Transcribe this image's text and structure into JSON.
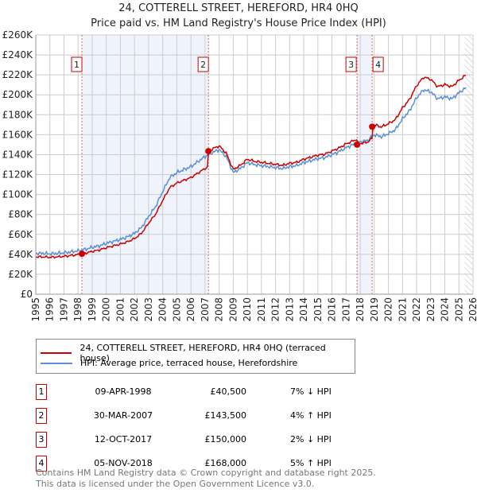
{
  "title": "24, COTTERELL STREET, HEREFORD, HR4 0HQ",
  "subtitle": "Price paid vs. HM Land Registry's House Price Index (HPI)",
  "chart_data": {
    "type": "line",
    "ylim": [
      0,
      260000
    ],
    "xlim": [
      1995,
      2026
    ],
    "yticks": [
      0,
      20000,
      40000,
      60000,
      80000,
      100000,
      120000,
      140000,
      160000,
      180000,
      200000,
      220000,
      240000,
      260000
    ],
    "ytick_labels": [
      "£0",
      "£20K",
      "£40K",
      "£60K",
      "£80K",
      "£100K",
      "£120K",
      "£140K",
      "£160K",
      "£180K",
      "£200K",
      "£220K",
      "£240K",
      "£260K"
    ],
    "xtick_labels": [
      "1995",
      "1996",
      "1997",
      "1998",
      "1999",
      "2000",
      "2001",
      "2002",
      "2003",
      "2004",
      "2005",
      "2006",
      "2007",
      "2008",
      "2009",
      "2010",
      "2011",
      "2012",
      "2013",
      "2014",
      "2015",
      "2016",
      "2017",
      "2018",
      "2019",
      "2020",
      "2021",
      "2022",
      "2023",
      "2024",
      "2025",
      "2026"
    ],
    "hpi_series": {
      "name": "HPI: Average price, terraced house, Herefordshire",
      "color": "#5b8fd6",
      "x": [
        1995,
        1995.5,
        1996,
        1996.5,
        1997,
        1997.5,
        1998,
        1998.5,
        1999,
        1999.5,
        2000,
        2000.5,
        2001,
        2001.5,
        2002,
        2002.5,
        2003,
        2003.5,
        2004,
        2004.5,
        2005,
        2005.5,
        2006,
        2006.5,
        2007,
        2007.5,
        2008,
        2008.5,
        2009,
        2009.5,
        2010,
        2010.5,
        2011,
        2011.5,
        2012,
        2012.5,
        2013,
        2013.5,
        2014,
        2014.5,
        2015,
        2015.5,
        2016,
        2016.5,
        2017,
        2017.5,
        2018,
        2018.5,
        2019,
        2019.5,
        2020,
        2020.5,
        2021,
        2021.5,
        2022,
        2022.5,
        2023,
        2023.5,
        2024,
        2024.5,
        2025,
        2025.5
      ],
      "y": [
        41000,
        41000,
        40500,
        41000,
        41500,
        42500,
        43500,
        45000,
        47000,
        48500,
        51000,
        53000,
        55000,
        57500,
        61000,
        67000,
        78000,
        88000,
        103000,
        117000,
        122000,
        125000,
        128000,
        133000,
        138000,
        142000,
        145000,
        138000,
        122000,
        126000,
        132000,
        130000,
        129000,
        128000,
        127000,
        126000,
        128000,
        129000,
        132000,
        134000,
        136000,
        137000,
        140000,
        143000,
        147000,
        150000,
        153000,
        154000,
        160000,
        158000,
        161000,
        165000,
        176000,
        184000,
        197000,
        205000,
        203000,
        196000,
        198000,
        196000,
        202000,
        207000
      ]
    },
    "price_series": {
      "name": "24, COTTERELL STREET, HEREFORD, HR4 0HQ (terraced house)",
      "color": "#cc0000"
    },
    "sales": [
      {
        "num": "1",
        "x": 1998.27,
        "price": 40500,
        "date": "09-APR-1998",
        "price_label": "£40,500",
        "hpi": "7% ↓ HPI"
      },
      {
        "num": "2",
        "x": 2007.24,
        "price": 143500,
        "date": "30-MAR-2007",
        "price_label": "£143,500",
        "hpi": "4% ↑ HPI"
      },
      {
        "num": "3",
        "x": 2017.78,
        "price": 150000,
        "date": "12-OCT-2017",
        "price_label": "£150,000",
        "hpi": "2% ↓ HPI"
      },
      {
        "num": "4",
        "x": 2018.85,
        "price": 168000,
        "date": "05-NOV-2018",
        "price_label": "£168,000",
        "hpi": "5% ↑ HPI"
      }
    ],
    "forecast_from": 2025.4
  },
  "footer": {
    "line1": "Contains HM Land Registry data © Crown copyright and database right 2025.",
    "line2": "This data is licensed under the Open Government Licence v3.0."
  }
}
